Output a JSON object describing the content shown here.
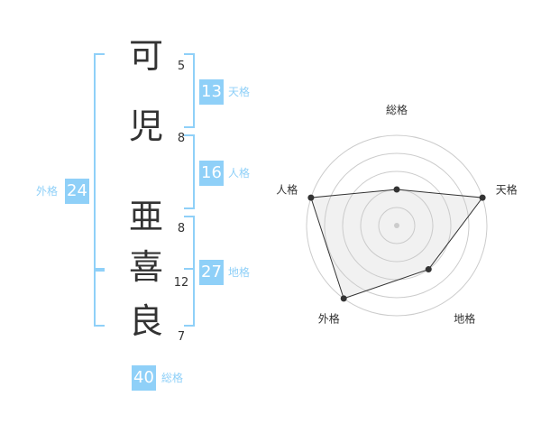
{
  "chars": [
    {
      "c": "可",
      "strokes": "5"
    },
    {
      "c": "児",
      "strokes": "8"
    },
    {
      "c": "亜",
      "strokes": "8"
    },
    {
      "c": "喜",
      "strokes": "12"
    },
    {
      "c": "良",
      "strokes": "7"
    }
  ],
  "kaku": {
    "tenkaku": {
      "label": "天格",
      "value": "13"
    },
    "jinkaku": {
      "label": "人格",
      "value": "16"
    },
    "chikaku": {
      "label": "地格",
      "value": "27"
    },
    "gaikaku": {
      "label": "外格",
      "value": "24"
    },
    "soukaku": {
      "label": "総格",
      "value": "40"
    }
  },
  "colors": {
    "accent": "#8fd0f8"
  },
  "chart_data": {
    "type": "radar",
    "axes": [
      "総格",
      "天格",
      "地格",
      "外格",
      "人格"
    ],
    "values": [
      2,
      5,
      3,
      5,
      5
    ],
    "max": 5,
    "rings": 5
  }
}
